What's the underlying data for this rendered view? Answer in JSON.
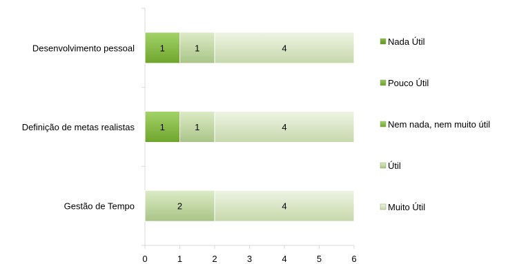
{
  "chart_data": {
    "type": "bar",
    "orientation": "horizontal",
    "stacked": true,
    "categories": [
      "Desenvolvimento pessoal",
      "Definição de metas realistas",
      "Gestão de Tempo"
    ],
    "series": [
      {
        "name": "Nada Útil",
        "values": [
          0,
          0,
          0
        ],
        "color": "#5f8f1f"
      },
      {
        "name": "Pouco Útil",
        "values": [
          0,
          0,
          0
        ],
        "color": "#6f9f2a"
      },
      {
        "name": "Nem nada, nem muito útil",
        "values": [
          1,
          1,
          0
        ],
        "color": "#7db73c"
      },
      {
        "name": "Útil",
        "values": [
          1,
          1,
          2
        ],
        "color": "#b7cf95"
      },
      {
        "name": "Muito Útil",
        "values": [
          4,
          4,
          4
        ],
        "color": "#d2dfbd"
      }
    ],
    "x_ticks": [
      "0",
      "1",
      "2",
      "3",
      "4",
      "5",
      "6"
    ],
    "xlim": [
      0,
      6
    ],
    "title": "",
    "xlabel": "",
    "ylabel": "",
    "grid": false,
    "legend_position": "right"
  }
}
